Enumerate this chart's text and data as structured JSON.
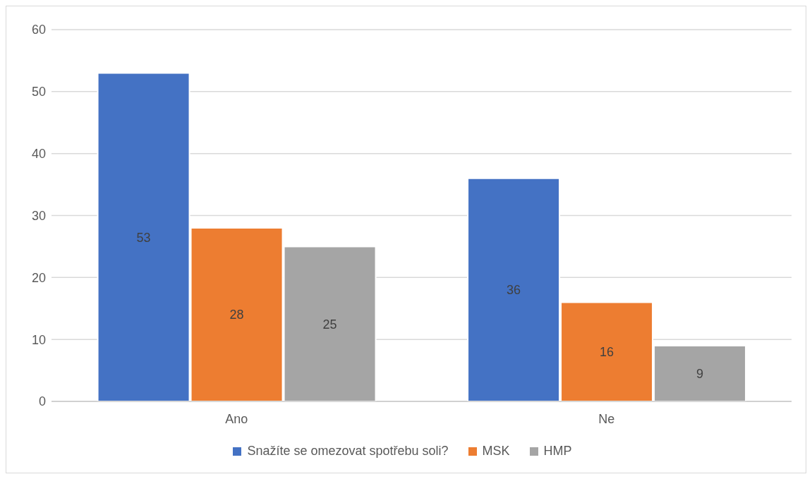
{
  "chart_data": {
    "type": "bar",
    "categories": [
      "Ano",
      "Ne"
    ],
    "series": [
      {
        "name": "Snažíte se omezovat spotřebu soli?",
        "color": "#4472c4",
        "values": [
          53,
          36
        ]
      },
      {
        "name": "MSK",
        "color": "#ed7d31",
        "values": [
          28,
          16
        ]
      },
      {
        "name": "HMP",
        "color": "#a5a5a5",
        "values": [
          25,
          9
        ]
      }
    ],
    "ylim": [
      0,
      60
    ],
    "yticks": [
      0,
      10,
      20,
      30,
      40,
      50,
      60
    ],
    "grid": "y",
    "legend": "bottom",
    "data_labels": true
  }
}
